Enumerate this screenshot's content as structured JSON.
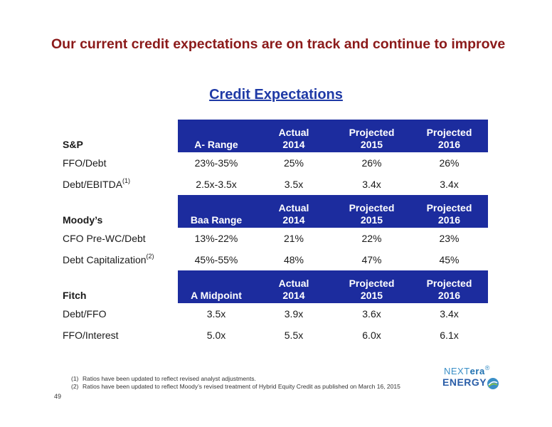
{
  "title": "Our current credit expectations are on track and continue to improve",
  "subtitle": "Credit Expectations",
  "sections": [
    {
      "agency": "S&P",
      "target": "A- Range",
      "cols": [
        {
          "l1": "Actual",
          "l2": "2014"
        },
        {
          "l1": "Projected",
          "l2": "2015"
        },
        {
          "l1": "Projected",
          "l2": "2016"
        }
      ],
      "rows": [
        {
          "label": "FFO/Debt",
          "note": "",
          "target": "23%-35%",
          "v2014": "25%",
          "v2015": "26%",
          "v2016": "26%"
        },
        {
          "label": "Debt/EBITDA",
          "note": "(1)",
          "target": "2.5x-3.5x",
          "v2014": "3.5x",
          "v2015": "3.4x",
          "v2016": "3.4x"
        }
      ]
    },
    {
      "agency": "Moody’s",
      "target": "Baa Range",
      "cols": [
        {
          "l1": "Actual",
          "l2": "2014"
        },
        {
          "l1": "Projected",
          "l2": "2015"
        },
        {
          "l1": "Projected",
          "l2": "2016"
        }
      ],
      "rows": [
        {
          "label": "CFO Pre-WC/Debt",
          "note": "",
          "target": "13%-22%",
          "v2014": "21%",
          "v2015": "22%",
          "v2016": "23%"
        },
        {
          "label": "Debt Capitalization",
          "note": "(2)",
          "target": "45%-55%",
          "v2014": "48%",
          "v2015": "47%",
          "v2016": "45%"
        }
      ]
    },
    {
      "agency": "Fitch",
      "target": "A Midpoint",
      "cols": [
        {
          "l1": "Actual",
          "l2": "2014"
        },
        {
          "l1": "Projected",
          "l2": "2015"
        },
        {
          "l1": "Projected",
          "l2": "2016"
        }
      ],
      "rows": [
        {
          "label": "Debt/FFO",
          "note": "",
          "target": "3.5x",
          "v2014": "3.9x",
          "v2015": "3.6x",
          "v2016": "3.4x"
        },
        {
          "label": "FFO/Interest",
          "note": "",
          "target": "5.0x",
          "v2014": "5.5x",
          "v2015": "6.0x",
          "v2016": "6.1x"
        }
      ]
    }
  ],
  "footnotes": [
    {
      "num": "(1)",
      "text": "Ratios have been updated to reflect revised analyst adjustments."
    },
    {
      "num": "(2)",
      "text": "Ratios have been updated to reflect Moody’s revised treatment of Hybrid Equity Credit as published on March 16, 2015"
    }
  ],
  "page_number": "49",
  "logo": {
    "next": "NEXT",
    "era": "era",
    "tm": "®",
    "energy": "ENERGY",
    "energy_tm": "®"
  },
  "colors": {
    "title": "#8b1a1a",
    "subtitle": "#1f3aa6",
    "header_fill": "#1c2c9e"
  }
}
